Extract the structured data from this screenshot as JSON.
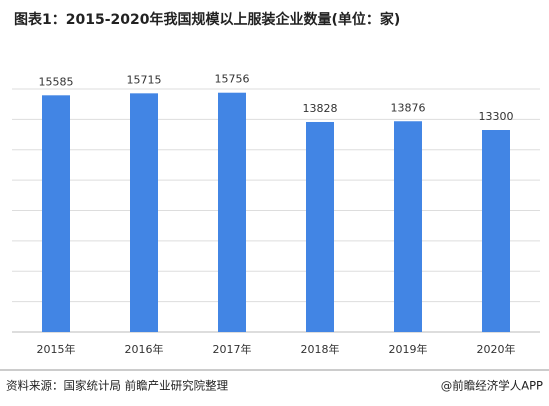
{
  "chart_data": {
    "type": "bar",
    "title": "图表1：2015-2020年我国规模以上服装企业数量(单位：家)",
    "categories": [
      "2015年",
      "2016年",
      "2017年",
      "2018年",
      "2019年",
      "2020年"
    ],
    "values": [
      15585,
      15715,
      15756,
      13828,
      13876,
      13300
    ],
    "color": "#4285e4",
    "ylim": [
      0,
      16000
    ],
    "yticks": [
      0,
      2000,
      4000,
      6000,
      8000,
      10000,
      12000,
      14000,
      16000
    ],
    "grid": true,
    "source": "资料来源：国家统计局 前瞻产业研究院整理",
    "credit": "@前瞻经济学人APP"
  }
}
